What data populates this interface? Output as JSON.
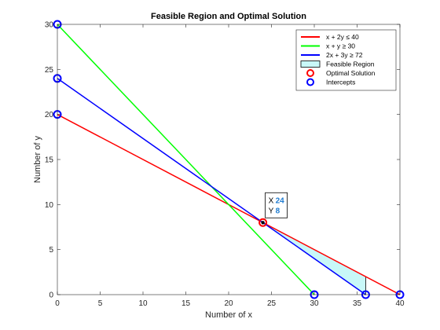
{
  "chart_data": {
    "type": "line",
    "title": "Feasible Region and Optimal Solution",
    "xlabel": "Number of x",
    "ylabel": "Number of y",
    "xlim": [
      0,
      40
    ],
    "ylim": [
      0,
      30
    ],
    "x_ticks": [
      0,
      5,
      10,
      15,
      20,
      25,
      30,
      35,
      40
    ],
    "y_ticks": [
      0,
      5,
      10,
      15,
      20,
      25,
      30
    ],
    "grid": false,
    "legend_position": "top-right",
    "series": [
      {
        "name": "x + 2y ≤ 40",
        "type": "line",
        "color": "#ff0000",
        "points": [
          [
            0,
            20
          ],
          [
            40,
            0
          ]
        ]
      },
      {
        "name": "x + y ≥ 30",
        "type": "line",
        "color": "#00ff00",
        "points": [
          [
            0,
            30
          ],
          [
            30,
            0
          ]
        ]
      },
      {
        "name": "2x + 3y ≥ 72",
        "type": "line",
        "color": "#0000ff",
        "points": [
          [
            0,
            24
          ],
          [
            36,
            0
          ]
        ]
      },
      {
        "name": "Feasible Region",
        "type": "area",
        "color": "#c8f8f8",
        "edge_color": "#000000",
        "points": [
          [
            24,
            8
          ],
          [
            36,
            0
          ],
          [
            36,
            2
          ]
        ]
      },
      {
        "name": "Optimal Solution",
        "type": "scatter",
        "marker": "circle",
        "color": "#ff0000",
        "points": [
          [
            24,
            8
          ]
        ]
      },
      {
        "name": "Intercepts",
        "type": "scatter",
        "marker": "circle",
        "color": "#0000ff",
        "points": [
          [
            0,
            20
          ],
          [
            0,
            30
          ],
          [
            0,
            24
          ],
          [
            30,
            0
          ],
          [
            36,
            0
          ],
          [
            40,
            0
          ]
        ]
      }
    ],
    "datatip": {
      "point": [
        24,
        8
      ],
      "x_label": "X",
      "x_value": "24",
      "y_label": "Y",
      "y_value": "8"
    }
  }
}
